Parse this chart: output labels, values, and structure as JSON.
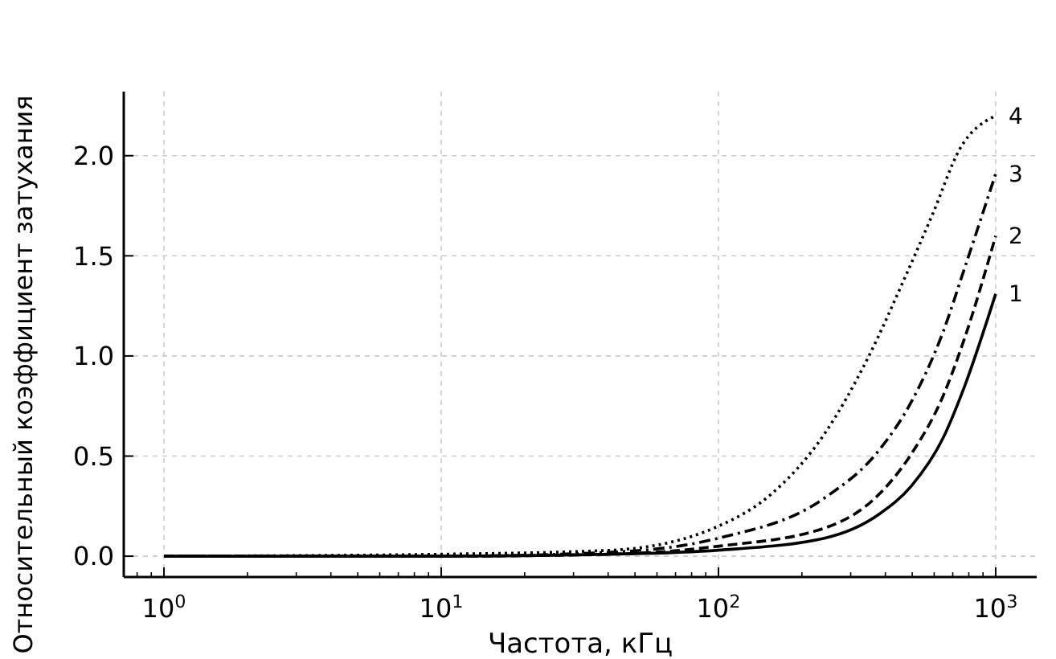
{
  "chart_data": {
    "type": "line",
    "xlabel": "Частота, кГц",
    "ylabel": "Относительный коэффициент затухания",
    "log": "x",
    "xlim": [
      0.716,
      1406
    ],
    "ylim": [
      -0.104,
      2.32
    ],
    "xticks": [
      {
        "value": 1,
        "label": "10$^{0}$"
      },
      {
        "value": 10,
        "label": "10$^{1}$"
      },
      {
        "value": 100,
        "label": "10$^{2}$"
      },
      {
        "value": 1000,
        "label": "10$^{3}$"
      }
    ],
    "yticks": [
      {
        "value": 0,
        "label": "0.0"
      },
      {
        "value": 0.5,
        "label": "0.5"
      },
      {
        "value": 1,
        "label": "1.0"
      },
      {
        "value": 1.5,
        "label": "1.5"
      },
      {
        "value": 2,
        "label": "2.0"
      }
    ],
    "grid": true,
    "marker": "none",
    "series": [
      {
        "name": "1",
        "color": "#000000",
        "line_style": "solid",
        "x": [
          1,
          10,
          41,
          100,
          241,
          380,
          496,
          646,
          773,
          1000
        ],
        "values": [
          0,
          0,
          0.01,
          0.03,
          0.09,
          0.21,
          0.35,
          0.59,
          0.85,
          1.31
        ]
      },
      {
        "name": "2",
        "color": "#000000",
        "line_style": "dashed",
        "x": [
          1,
          10,
          41,
          100,
          241,
          380,
          496,
          646,
          773,
          1000
        ],
        "values": [
          0,
          0,
          0.01,
          0.05,
          0.14,
          0.31,
          0.51,
          0.8,
          1.09,
          1.6
        ]
      },
      {
        "name": "3",
        "color": "#000000",
        "line_style": "dashdot",
        "x": [
          1,
          10,
          41,
          100,
          241,
          380,
          496,
          646,
          773,
          1000
        ],
        "values": [
          0,
          0,
          0.02,
          0.09,
          0.29,
          0.53,
          0.77,
          1.12,
          1.44,
          1.91
        ]
      },
      {
        "name": "4",
        "color": "#000000",
        "line_style": "dotted",
        "x": [
          1,
          10,
          41,
          100,
          155,
          241,
          346,
          470,
          593,
          740,
          1000
        ],
        "values": [
          0,
          0.01,
          0.03,
          0.15,
          0.31,
          0.61,
          0.99,
          1.39,
          1.71,
          2.03,
          2.2
        ]
      }
    ]
  }
}
